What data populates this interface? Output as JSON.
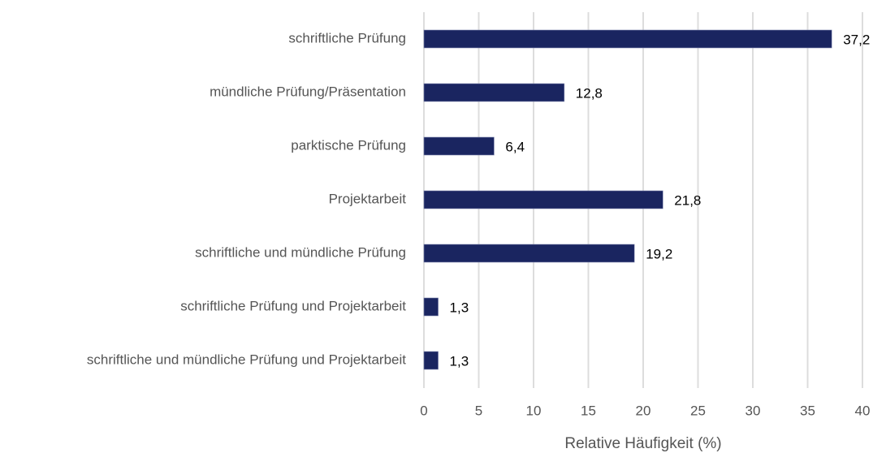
{
  "chart_data": {
    "type": "barh",
    "categories": [
      "schriftliche Prüfung",
      "mündliche Prüfung/Präsentation",
      "parktische Prüfung",
      "Projektarbeit",
      "schriftliche und mündliche Prüfung",
      "schriftliche Prüfung und Projektarbeit",
      "schriftliche und mündliche Prüfung und Projektarbeit"
    ],
    "values": [
      37.2,
      12.8,
      6.4,
      21.8,
      19.2,
      1.3,
      1.3
    ],
    "value_labels": [
      "37,2",
      "12,8",
      "6,4",
      "21,8",
      "19,2",
      "1,3",
      "1,3"
    ],
    "color": "#1a2560",
    "xlabel": "Relative Häufigkeit (%)",
    "xlim": [
      0,
      40
    ],
    "xticks": [
      0,
      5,
      10,
      15,
      20,
      25,
      30,
      35,
      40
    ],
    "grid": true
  }
}
